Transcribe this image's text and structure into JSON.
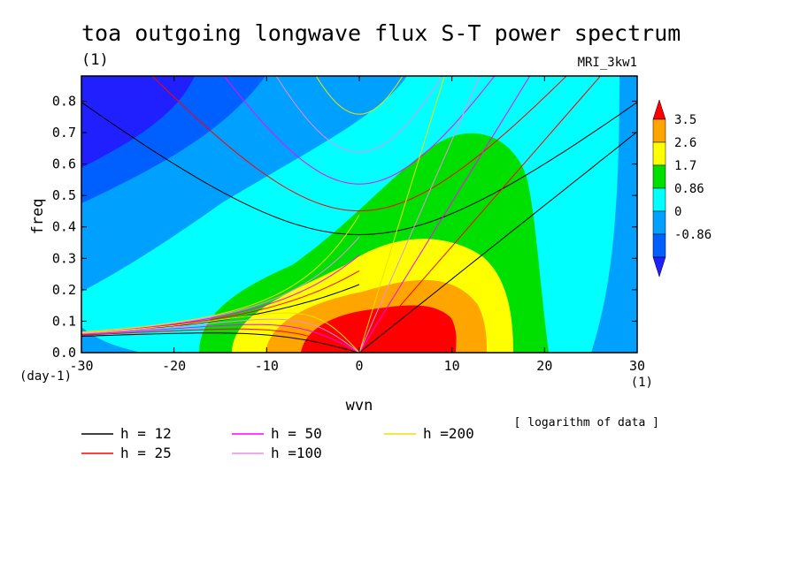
{
  "chart_data": {
    "type": "heatmap",
    "title": "toa outgoing longwave flux S-T power spectrum",
    "subtitle": "(1)",
    "model_label": "MRI_3kw1",
    "xlabel": "wvn",
    "ylabel": "freq",
    "x_unit": "(1)",
    "y_unit": "(day-1)",
    "xlim": [
      -30,
      30
    ],
    "ylim": [
      0,
      0.88
    ],
    "xticks": [
      -30,
      -20,
      -10,
      0,
      10,
      20,
      30
    ],
    "yticks": [
      0.0,
      0.1,
      0.2,
      0.3,
      0.4,
      0.5,
      0.6,
      0.7,
      0.8
    ],
    "note": "[ logarithm of data ]",
    "colorbar": {
      "labels": [
        "3.5",
        "2.6",
        "1.7",
        "0.86",
        "0",
        "-0.86"
      ],
      "colors": [
        "#ff0000",
        "#ffa500",
        "#ffff00",
        "#00e000",
        "#00ffff",
        "#00a0ff",
        "#0060ff",
        "#2020ff"
      ]
    },
    "dispersion_curves": [
      {
        "name": "h = 12",
        "h": 12,
        "color": "#000000"
      },
      {
        "name": "h = 25",
        "h": 25,
        "color": "#ff0000"
      },
      {
        "name": "h = 50",
        "h": 50,
        "color": "#ff00ff"
      },
      {
        "name": "h =100",
        "h": 100,
        "color": "#e88ee8"
      },
      {
        "name": "h =200",
        "h": 200,
        "color": "#f0e000"
      }
    ]
  }
}
